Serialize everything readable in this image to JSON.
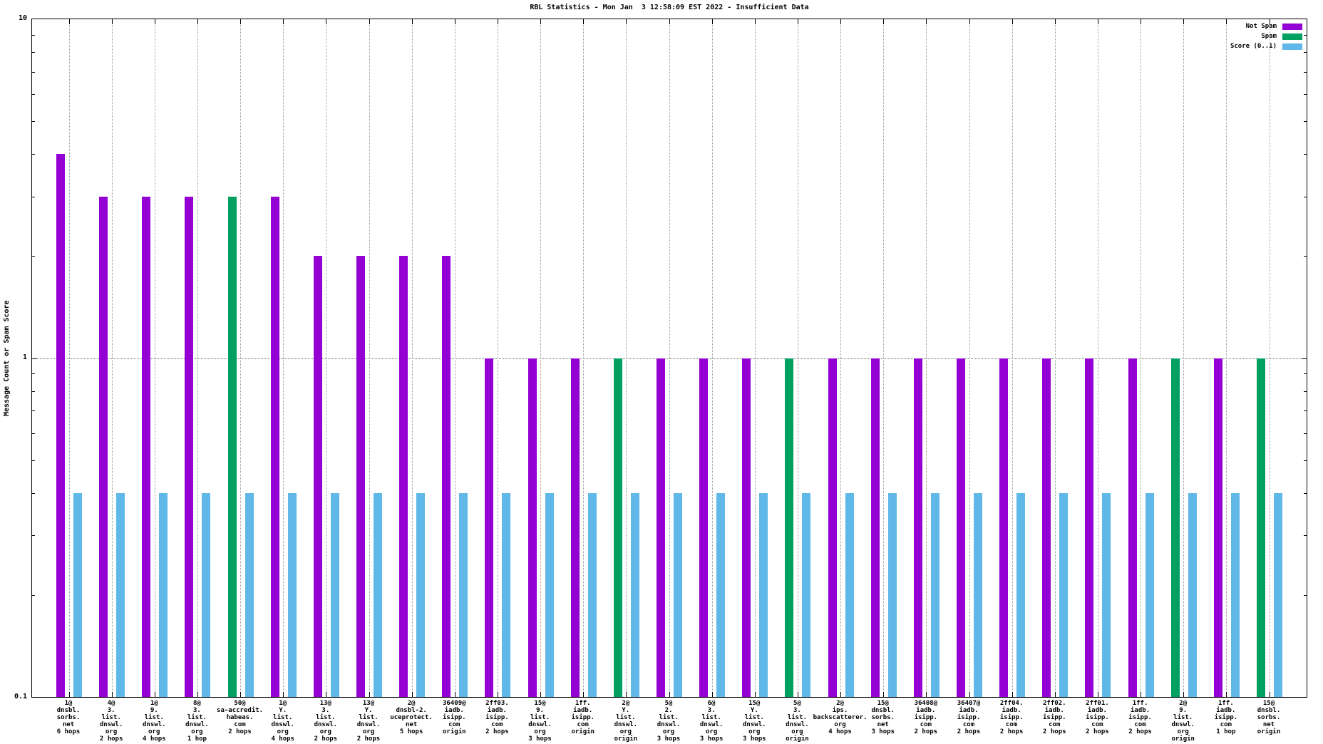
{
  "title": "RBL Statistics - Mon Jan  3 12:58:09 EST 2022 - Insufficient Data",
  "legend": [
    {
      "label": "Not Spam",
      "key": "not_spam"
    },
    {
      "label": "Spam",
      "key": "spam"
    },
    {
      "label": "Score (0..1)",
      "key": "score"
    }
  ],
  "chart_data": {
    "type": "bar",
    "log_y": true,
    "ylim": [
      0.1,
      10
    ],
    "yticks": [
      "10",
      "1",
      "0.1"
    ],
    "grid": "dotted vertical at each category, dotted horizontal at y=1",
    "legend_position": "top-right inside plot",
    "title": "RBL Statistics - Mon Jan  3 12:58:09 EST 2022 - Insufficient Data",
    "ylabel": "Message Count or Spam Score",
    "series_colors": {
      "not_spam": "#9400d3",
      "spam": "#00a060",
      "score": "#5fb8e8"
    },
    "series_note": "Each category has one message-count bar (Not Spam purple or Spam green) plus one Score bar (light blue, value 0.4 for all)",
    "groups": [
      {
        "label": [
          "1@",
          "dnsbl.",
          "sorbs.",
          "net",
          "6 hops"
        ],
        "type": "not_spam",
        "count": 4,
        "score": 0.4
      },
      {
        "label": [
          "4@",
          "3.",
          "list.",
          "dnswl.",
          "org",
          "2 hops"
        ],
        "type": "not_spam",
        "count": 3,
        "score": 0.4
      },
      {
        "label": [
          "1@",
          "9.",
          "list.",
          "dnswl.",
          "org",
          "4 hops"
        ],
        "type": "not_spam",
        "count": 3,
        "score": 0.4
      },
      {
        "label": [
          "8@",
          "3.",
          "list.",
          "dnswl.",
          "org",
          "1 hop"
        ],
        "type": "not_spam",
        "count": 3,
        "score": 0.4
      },
      {
        "label": [
          "50@",
          "sa-accredit.",
          "habeas.",
          "com",
          "2 hops"
        ],
        "type": "spam",
        "count": 3,
        "score": 0.4
      },
      {
        "label": [
          "1@",
          "Y.",
          "list.",
          "dnswl.",
          "org",
          "4 hops"
        ],
        "type": "not_spam",
        "count": 3,
        "score": 0.4
      },
      {
        "label": [
          "13@",
          "3.",
          "list.",
          "dnswl.",
          "org",
          "2 hops"
        ],
        "type": "not_spam",
        "count": 2,
        "score": 0.4
      },
      {
        "label": [
          "13@",
          "Y.",
          "list.",
          "dnswl.",
          "org",
          "2 hops"
        ],
        "type": "not_spam",
        "count": 2,
        "score": 0.4
      },
      {
        "label": [
          "2@",
          "dnsbl-2.",
          "uceprotect.",
          "net",
          "5 hops"
        ],
        "type": "not_spam",
        "count": 2,
        "score": 0.4
      },
      {
        "label": [
          "36409@",
          "iadb.",
          "isipp.",
          "com",
          "origin"
        ],
        "type": "not_spam",
        "count": 2,
        "score": 0.4
      },
      {
        "label": [
          "2ff03.",
          "iadb.",
          "isipp.",
          "com",
          "2 hops"
        ],
        "type": "not_spam",
        "count": 1,
        "score": 0.4
      },
      {
        "label": [
          "15@",
          "9.",
          "list.",
          "dnswl.",
          "org",
          "3 hops"
        ],
        "type": "not_spam",
        "count": 1,
        "score": 0.4
      },
      {
        "label": [
          "1ff.",
          "iadb.",
          "isipp.",
          "com",
          "origin"
        ],
        "type": "not_spam",
        "count": 1,
        "score": 0.4
      },
      {
        "label": [
          "2@",
          "Y.",
          "list.",
          "dnswl.",
          "org",
          "origin"
        ],
        "type": "spam",
        "count": 1,
        "score": 0.4
      },
      {
        "label": [
          "5@",
          "2.",
          "list.",
          "dnswl.",
          "org",
          "3 hops"
        ],
        "type": "not_spam",
        "count": 1,
        "score": 0.4
      },
      {
        "label": [
          "6@",
          "3.",
          "list.",
          "dnswl.",
          "org",
          "3 hops"
        ],
        "type": "not_spam",
        "count": 1,
        "score": 0.4
      },
      {
        "label": [
          "15@",
          "Y.",
          "list.",
          "dnswl.",
          "org",
          "3 hops"
        ],
        "type": "not_spam",
        "count": 1,
        "score": 0.4
      },
      {
        "label": [
          "5@",
          "3.",
          "list.",
          "dnswl.",
          "org",
          "origin"
        ],
        "type": "spam",
        "count": 1,
        "score": 0.4
      },
      {
        "label": [
          "2@",
          "ips.",
          "backscatterer.",
          "org",
          "4 hops"
        ],
        "type": "not_spam",
        "count": 1,
        "score": 0.4
      },
      {
        "label": [
          "15@",
          "dnsbl.",
          "sorbs.",
          "net",
          "3 hops"
        ],
        "type": "not_spam",
        "count": 1,
        "score": 0.4
      },
      {
        "label": [
          "36408@",
          "iadb.",
          "isipp.",
          "com",
          "2 hops"
        ],
        "type": "not_spam",
        "count": 1,
        "score": 0.4
      },
      {
        "label": [
          "36407@",
          "iadb.",
          "isipp.",
          "com",
          "2 hops"
        ],
        "type": "not_spam",
        "count": 1,
        "score": 0.4
      },
      {
        "label": [
          "2ff04.",
          "iadb.",
          "isipp.",
          "com",
          "2 hops"
        ],
        "type": "not_spam",
        "count": 1,
        "score": 0.4
      },
      {
        "label": [
          "2ff02.",
          "iadb.",
          "isipp.",
          "com",
          "2 hops"
        ],
        "type": "not_spam",
        "count": 1,
        "score": 0.4
      },
      {
        "label": [
          "2ff01.",
          "iadb.",
          "isipp.",
          "com",
          "2 hops"
        ],
        "type": "not_spam",
        "count": 1,
        "score": 0.4
      },
      {
        "label": [
          "1ff.",
          "iadb.",
          "isipp.",
          "com",
          "2 hops"
        ],
        "type": "not_spam",
        "count": 1,
        "score": 0.4
      },
      {
        "label": [
          "2@",
          "9.",
          "list.",
          "dnswl.",
          "org",
          "origin"
        ],
        "type": "spam",
        "count": 1,
        "score": 0.4
      },
      {
        "label": [
          "1ff.",
          "iadb.",
          "isipp.",
          "com",
          "1 hop"
        ],
        "type": "not_spam",
        "count": 1,
        "score": 0.4
      },
      {
        "label": [
          "15@",
          "dnsbl.",
          "sorbs.",
          "net",
          "origin"
        ],
        "type": "spam",
        "count": 1,
        "score": 0.4
      }
    ]
  }
}
